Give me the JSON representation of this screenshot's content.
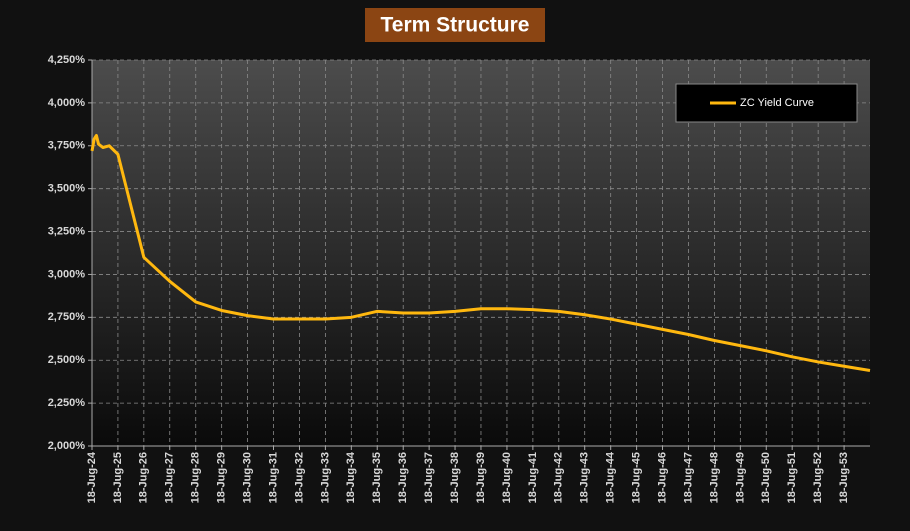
{
  "chart_data": {
    "type": "line",
    "title": "Term Structure",
    "x": [
      "2024-07-18",
      "2024-08-18",
      "2024-09-18",
      "2024-10-18",
      "2024-12-18",
      "2025-03-18",
      "2025-07-18",
      "2026-07-18",
      "2027-07-18",
      "2028-07-18",
      "2029-07-18",
      "2030-07-18",
      "2031-07-18",
      "2032-07-18",
      "2033-07-18",
      "2034-07-18",
      "2035-07-18",
      "2036-07-18",
      "2037-07-18",
      "2038-07-18",
      "2039-07-18",
      "2040-07-18",
      "2041-07-18",
      "2042-07-18",
      "2043-07-18",
      "2044-07-18",
      "2045-07-18",
      "2046-07-18",
      "2047-07-18",
      "2048-07-18",
      "2049-07-18",
      "2050-07-18",
      "2051-07-18",
      "2052-07-18",
      "2053-07-18",
      "2054-07-18"
    ],
    "series": [
      {
        "name": "ZC Yield Curve",
        "color": "#ffb80f",
        "values": [
          3.72,
          3.79,
          3.81,
          3.76,
          3.74,
          3.75,
          3.7,
          3.1,
          2.96,
          2.84,
          2.79,
          2.76,
          2.74,
          2.74,
          2.74,
          2.75,
          2.785,
          2.775,
          2.775,
          2.785,
          2.8,
          2.8,
          2.795,
          2.785,
          2.765,
          2.74,
          2.71,
          2.68,
          2.65,
          2.615,
          2.585,
          2.555,
          2.52,
          2.49,
          2.465,
          2.44
        ]
      }
    ],
    "xlim": [
      "2024-07-18",
      "2054-07-18"
    ],
    "xticks": [
      {
        "value": "2024-07-18",
        "label": "18-Jug-24"
      },
      {
        "value": "2025-07-18",
        "label": "18-Jug-25"
      },
      {
        "value": "2026-07-18",
        "label": "18-Jug-26"
      },
      {
        "value": "2027-07-18",
        "label": "18-Jug-27"
      },
      {
        "value": "2028-07-18",
        "label": "18-Jug-28"
      },
      {
        "value": "2029-07-18",
        "label": "18-Jug-29"
      },
      {
        "value": "2030-07-18",
        "label": "18-Jug-30"
      },
      {
        "value": "2031-07-18",
        "label": "18-Jug-31"
      },
      {
        "value": "2032-07-18",
        "label": "18-Jug-32"
      },
      {
        "value": "2033-07-18",
        "label": "18-Jug-33"
      },
      {
        "value": "2034-07-18",
        "label": "18-Jug-34"
      },
      {
        "value": "2035-07-18",
        "label": "18-Jug-35"
      },
      {
        "value": "2036-07-18",
        "label": "18-Jug-36"
      },
      {
        "value": "2037-07-18",
        "label": "18-Jug-37"
      },
      {
        "value": "2038-07-18",
        "label": "18-Jug-38"
      },
      {
        "value": "2039-07-18",
        "label": "18-Jug-39"
      },
      {
        "value": "2040-07-18",
        "label": "18-Jug-40"
      },
      {
        "value": "2041-07-18",
        "label": "18-Jug-41"
      },
      {
        "value": "2042-07-18",
        "label": "18-Jug-42"
      },
      {
        "value": "2043-07-18",
        "label": "18-Jug-43"
      },
      {
        "value": "2044-07-18",
        "label": "18-Jug-44"
      },
      {
        "value": "2045-07-18",
        "label": "18-Jug-45"
      },
      {
        "value": "2046-07-18",
        "label": "18-Jug-46"
      },
      {
        "value": "2047-07-18",
        "label": "18-Jug-47"
      },
      {
        "value": "2048-07-18",
        "label": "18-Jug-48"
      },
      {
        "value": "2049-07-18",
        "label": "18-Jug-49"
      },
      {
        "value": "2050-07-18",
        "label": "18-Jug-50"
      },
      {
        "value": "2051-07-18",
        "label": "18-Jug-51"
      },
      {
        "value": "2052-07-18",
        "label": "18-Jug-52"
      },
      {
        "value": "2053-07-18",
        "label": "18-Jug-53"
      }
    ],
    "ylim": [
      2.0,
      4.25
    ],
    "yticks": [
      {
        "value": 2.0,
        "label": "2,000%"
      },
      {
        "value": 2.25,
        "label": "2,250%"
      },
      {
        "value": 2.5,
        "label": "2,500%"
      },
      {
        "value": 2.75,
        "label": "2,750%"
      },
      {
        "value": 3.0,
        "label": "3,000%"
      },
      {
        "value": 3.25,
        "label": "3,250%"
      },
      {
        "value": 3.5,
        "label": "3,500%"
      },
      {
        "value": 3.75,
        "label": "3,750%"
      },
      {
        "value": 4.0,
        "label": "4,000%"
      },
      {
        "value": 4.25,
        "label": "4,250%"
      }
    ],
    "grid": true
  }
}
